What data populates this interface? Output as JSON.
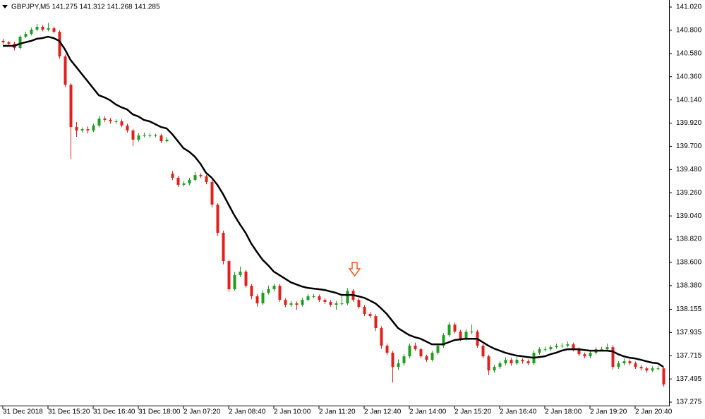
{
  "chart_data": {
    "type": "candlestick",
    "title": "GBPJPY,M5  141.275 141.312 141.268 141.285",
    "bull_color": "#1f9e1f",
    "bear_color": "#e3201b",
    "categories": [
      "31 Dec 2018",
      null,
      null,
      null,
      null,
      null,
      null,
      null,
      "31 Dec 15:20",
      null,
      null,
      null,
      null,
      null,
      null,
      null,
      "31 Dec 16:40",
      null,
      null,
      null,
      null,
      null,
      null,
      null,
      "31 Dec 18:00",
      null,
      null,
      null,
      null,
      null,
      null,
      null,
      "2 Jan 07:20",
      null,
      null,
      null,
      null,
      null,
      null,
      null,
      "2 Jan 08:40",
      null,
      null,
      null,
      null,
      null,
      null,
      null,
      "2 Jan 10:00",
      null,
      null,
      null,
      null,
      null,
      null,
      null,
      "2 Jan 11:20",
      null,
      null,
      null,
      null,
      null,
      null,
      null,
      "2 Jan 12:40",
      null,
      null,
      null,
      null,
      null,
      null,
      null,
      "2 Jan 14:00",
      null,
      null,
      null,
      null,
      null,
      null,
      null,
      "2 Jan 15:20",
      null,
      null,
      null,
      null,
      null,
      null,
      null,
      "2 Jan 16:40",
      null,
      null,
      null,
      null,
      null,
      null,
      null,
      "2 Jan 18:00",
      null,
      null,
      null,
      null,
      null,
      null,
      null,
      "2 Jan 19:20",
      null,
      null,
      null,
      null,
      null,
      null,
      null,
      "2 Jan 20:40",
      null,
      null,
      null,
      null,
      null
    ],
    "open": [
      140.7,
      140.686,
      140.672,
      140.632,
      140.739,
      140.766,
      140.806,
      140.833,
      140.806,
      140.819,
      140.786,
      140.552,
      140.284,
      139.883,
      139.85,
      139.863,
      139.85,
      139.897,
      139.963,
      139.95,
      139.937,
      139.937,
      139.897,
      139.85,
      139.763,
      139.803,
      139.803,
      139.803,
      139.803,
      139.749,
      139.44,
      139.402,
      139.335,
      139.348,
      139.382,
      139.428,
      139.415,
      139.362,
      139.147,
      138.88,
      138.612,
      138.345,
      138.479,
      138.512,
      138.378,
      138.278,
      138.211,
      138.311,
      138.345,
      138.378,
      138.244,
      138.198,
      138.211,
      138.198,
      138.244,
      138.278,
      138.278,
      138.244,
      138.225,
      138.198,
      138.211,
      138.211,
      138.331,
      138.244,
      138.178,
      138.111,
      138.091,
      137.977,
      137.81,
      137.743,
      137.609,
      137.643,
      137.709,
      137.81,
      137.776,
      137.709,
      137.676,
      137.743,
      137.81,
      137.91,
      138.01,
      137.943,
      137.876,
      137.943,
      137.943,
      137.81,
      137.709,
      137.575,
      137.609,
      137.643,
      137.676,
      137.643,
      137.676,
      137.662,
      137.643,
      137.743,
      137.776,
      137.776,
      137.796,
      137.81,
      137.81,
      137.823,
      137.776,
      137.729,
      137.709,
      137.743,
      137.776,
      137.776,
      137.796,
      137.609,
      137.643,
      137.662,
      137.643,
      137.609,
      137.595,
      137.575,
      137.595,
      137.595
    ],
    "high": [
      140.72,
      140.7,
      140.69,
      140.755,
      140.785,
      140.825,
      140.86,
      140.85,
      140.87,
      140.835,
      140.8,
      140.57,
      140.3,
      139.93,
      139.88,
      139.89,
      139.915,
      139.99,
      139.985,
      139.97,
      139.955,
      139.955,
      139.915,
      139.865,
      139.825,
      139.83,
      139.825,
      139.82,
      139.82,
      139.79,
      139.465,
      139.42,
      139.37,
      139.4,
      139.455,
      139.445,
      139.43,
      139.38,
      139.16,
      138.9,
      138.625,
      138.51,
      138.56,
      138.53,
      138.395,
      138.3,
      138.335,
      138.38,
      138.4,
      138.395,
      138.26,
      138.235,
      138.23,
      138.265,
      138.3,
      138.3,
      138.295,
      138.26,
      138.245,
      138.235,
      138.28,
      138.355,
      138.345,
      138.26,
      138.195,
      138.13,
      138.11,
      137.995,
      137.83,
      137.76,
      137.68,
      137.73,
      137.83,
      137.84,
      137.79,
      137.725,
      137.76,
      137.83,
      137.93,
      138.035,
      138.03,
      137.96,
      137.965,
      138.01,
      137.96,
      137.825,
      137.725,
      137.63,
      137.665,
      137.7,
      137.695,
      137.7,
      137.69,
      137.68,
      137.765,
      137.795,
      137.8,
      137.815,
      137.83,
      137.835,
      137.85,
      137.84,
      137.795,
      137.745,
      137.765,
      137.795,
      137.8,
      137.83,
      137.815,
      137.665,
      137.69,
      137.68,
      137.66,
      137.625,
      137.61,
      137.615,
      137.615,
      137.61
    ],
    "low": [
      140.67,
      140.655,
      140.61,
      140.62,
      140.725,
      140.75,
      140.79,
      140.79,
      140.79,
      140.77,
      140.53,
      140.26,
      139.58,
      139.79,
      139.83,
      139.82,
      139.835,
      139.88,
      139.93,
      139.915,
      139.915,
      139.88,
      139.83,
      139.7,
      139.745,
      139.785,
      139.78,
      139.785,
      139.73,
      139.735,
      139.38,
      139.315,
      139.32,
      139.33,
      139.37,
      139.4,
      139.34,
      139.12,
      138.85,
      138.58,
      138.32,
      138.33,
      138.46,
      138.36,
      138.25,
      138.18,
      138.195,
      138.295,
      138.325,
      138.225,
      138.175,
      138.18,
      138.15,
      138.18,
      138.23,
      138.26,
      138.225,
      138.205,
      138.18,
      138.15,
      138.19,
      138.195,
      138.225,
      138.16,
      138.09,
      138.07,
      137.95,
      137.78,
      137.72,
      137.46,
      137.58,
      137.62,
      137.69,
      137.76,
      137.69,
      137.655,
      137.66,
      137.725,
      137.79,
      137.895,
      137.925,
      137.855,
      137.86,
      137.92,
      137.79,
      137.69,
      137.53,
      137.555,
      137.59,
      137.625,
      137.62,
      137.625,
      137.64,
      137.625,
      137.625,
      137.725,
      137.755,
      137.76,
      137.78,
      137.79,
      137.795,
      137.755,
      137.71,
      137.69,
      137.69,
      137.725,
      137.755,
      137.76,
      137.585,
      137.59,
      137.625,
      137.625,
      137.59,
      137.575,
      137.555,
      137.56,
      137.575,
      137.42
    ],
    "close": [
      140.686,
      140.672,
      140.632,
      140.739,
      140.766,
      140.806,
      140.833,
      140.806,
      140.819,
      140.786,
      140.552,
      140.284,
      139.883,
      139.85,
      139.863,
      139.85,
      139.897,
      139.963,
      139.95,
      139.937,
      139.937,
      139.897,
      139.85,
      139.763,
      139.803,
      139.803,
      139.803,
      139.803,
      139.749,
      139.763,
      139.402,
      139.335,
      139.348,
      139.382,
      139.428,
      139.415,
      139.362,
      139.147,
      138.88,
      138.612,
      138.345,
      138.479,
      138.512,
      138.378,
      138.278,
      138.211,
      138.311,
      138.345,
      138.378,
      138.244,
      138.198,
      138.211,
      138.198,
      138.244,
      138.278,
      138.278,
      138.244,
      138.225,
      138.198,
      138.211,
      138.211,
      138.331,
      138.244,
      138.178,
      138.111,
      138.091,
      137.977,
      137.81,
      137.743,
      137.609,
      137.643,
      137.709,
      137.81,
      137.776,
      137.709,
      137.676,
      137.743,
      137.81,
      137.91,
      138.01,
      137.943,
      137.876,
      137.943,
      137.943,
      137.81,
      137.709,
      137.575,
      137.609,
      137.643,
      137.676,
      137.643,
      137.676,
      137.662,
      137.643,
      137.743,
      137.776,
      137.776,
      137.796,
      137.81,
      137.81,
      137.823,
      137.776,
      137.729,
      137.709,
      137.743,
      137.776,
      137.776,
      137.796,
      137.609,
      137.643,
      137.662,
      137.643,
      137.609,
      137.595,
      137.575,
      137.595,
      137.595,
      137.442
    ],
    "ma": {
      "color": "#000000",
      "values": [
        140.652,
        140.652,
        140.652,
        140.672,
        140.686,
        140.699,
        140.719,
        140.726,
        140.739,
        140.726,
        140.699,
        140.619,
        140.518,
        140.452,
        140.385,
        140.318,
        140.251,
        140.184,
        140.164,
        140.137,
        140.097,
        140.07,
        140.05,
        140.003,
        139.983,
        139.95,
        139.937,
        139.91,
        139.883,
        139.87,
        139.816,
        139.749,
        139.682,
        139.649,
        139.602,
        139.535,
        139.448,
        139.402,
        139.335,
        139.248,
        139.147,
        139.047,
        138.96,
        138.88,
        138.779,
        138.699,
        138.625,
        138.572,
        138.512,
        138.479,
        138.445,
        138.411,
        138.391,
        138.371,
        138.358,
        138.351,
        138.345,
        138.338,
        138.324,
        138.311,
        138.291,
        138.291,
        138.291,
        138.278,
        138.264,
        138.238,
        138.211,
        138.164,
        138.111,
        138.044,
        137.977,
        137.943,
        137.91,
        137.89,
        137.876,
        137.85,
        137.823,
        137.823,
        137.823,
        137.843,
        137.863,
        137.87,
        137.876,
        137.876,
        137.876,
        137.843,
        137.81,
        137.783,
        137.763,
        137.743,
        137.729,
        137.716,
        137.709,
        137.702,
        137.696,
        137.702,
        137.709,
        137.729,
        137.743,
        137.763,
        137.776,
        137.776,
        137.776,
        137.769,
        137.763,
        137.763,
        137.763,
        137.763,
        137.756,
        137.729,
        137.709,
        137.696,
        137.689,
        137.676,
        137.662,
        137.649,
        137.643,
        137.609
      ]
    },
    "ylim": [
      137.242,
      141.087
    ],
    "yticks": [
      {
        "value": 141.02,
        "label": "141.020"
      },
      {
        "value": 140.8,
        "label": "140.800"
      },
      {
        "value": 140.58,
        "label": "140.580"
      },
      {
        "value": 140.36,
        "label": "140.360"
      },
      {
        "value": 140.14,
        "label": "140.140"
      },
      {
        "value": 139.92,
        "label": "139.920"
      },
      {
        "value": 139.7,
        "label": "139.700"
      },
      {
        "value": 139.48,
        "label": "139.480"
      },
      {
        "value": 139.26,
        "label": "139.260"
      },
      {
        "value": 139.04,
        "label": "139.040"
      },
      {
        "value": 138.82,
        "label": "138.820"
      },
      {
        "value": 138.6,
        "label": "138.600"
      },
      {
        "value": 138.38,
        "label": "138.380"
      },
      138.155,
      137.935,
      137.715,
      137.495,
      137.275
    ]
  }
}
